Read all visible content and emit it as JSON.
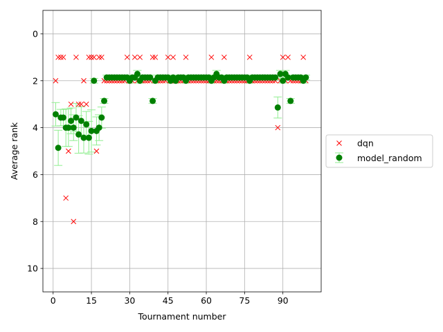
{
  "chart_data": {
    "type": "scatter",
    "xlabel": "Tournament number",
    "ylabel": "Average rank",
    "xlim": [
      -4,
      105
    ],
    "ylim": [
      11,
      -1
    ],
    "xticks": [
      0,
      15,
      30,
      45,
      60,
      75,
      90
    ],
    "yticks": [
      0,
      2,
      4,
      6,
      8,
      10
    ],
    "grid": true,
    "legend_position": "center-right",
    "colors": {
      "dqn": "#ff0000",
      "model_random": "#008000",
      "errorbar": "#90ee90"
    },
    "series": [
      {
        "name": "dqn",
        "marker": "x",
        "x": [
          1,
          2,
          3,
          4,
          5,
          6,
          7,
          8,
          9,
          10,
          11,
          12,
          13,
          14,
          15,
          16,
          17,
          18,
          19,
          20,
          21,
          22,
          23,
          24,
          25,
          26,
          27,
          28,
          29,
          30,
          31,
          32,
          33,
          34,
          35,
          36,
          37,
          38,
          39,
          40,
          41,
          42,
          43,
          44,
          45,
          46,
          47,
          48,
          49,
          50,
          51,
          52,
          53,
          54,
          55,
          56,
          57,
          58,
          59,
          60,
          61,
          62,
          63,
          64,
          65,
          66,
          67,
          68,
          69,
          70,
          71,
          72,
          73,
          74,
          75,
          76,
          77,
          78,
          79,
          80,
          81,
          82,
          83,
          84,
          85,
          86,
          87,
          88,
          89,
          90,
          91,
          92,
          93,
          94,
          95,
          96,
          97,
          98,
          99
        ],
        "y": [
          2,
          1,
          1,
          1,
          7,
          5,
          3,
          8,
          1,
          3,
          3,
          2,
          3,
          1,
          1,
          1,
          5,
          1,
          1,
          2,
          2,
          2,
          2,
          2,
          2,
          2,
          2,
          2,
          1,
          2,
          2,
          1,
          2,
          1,
          2,
          2,
          2,
          2,
          1,
          1,
          2,
          2,
          2,
          2,
          1,
          2,
          1,
          2,
          2,
          2,
          2,
          1,
          2,
          2,
          2,
          2,
          2,
          2,
          2,
          2,
          2,
          1,
          2,
          2,
          2,
          2,
          1,
          2,
          2,
          2,
          2,
          2,
          2,
          2,
          2,
          2,
          1,
          2,
          2,
          2,
          2,
          2,
          2,
          2,
          2,
          2,
          2,
          4,
          2,
          1,
          2,
          1,
          2,
          2,
          2,
          2,
          2,
          1,
          2
        ]
      },
      {
        "name": "model_random",
        "marker": "o",
        "x": [
          1,
          2,
          3,
          4,
          5,
          6,
          7,
          8,
          9,
          10,
          11,
          12,
          13,
          14,
          15,
          16,
          17,
          18,
          19,
          20,
          21,
          22,
          23,
          24,
          25,
          26,
          27,
          28,
          29,
          30,
          31,
          32,
          33,
          34,
          35,
          36,
          37,
          38,
          39,
          40,
          41,
          42,
          43,
          44,
          45,
          46,
          47,
          48,
          49,
          50,
          51,
          52,
          53,
          54,
          55,
          56,
          57,
          58,
          59,
          60,
          61,
          62,
          63,
          64,
          65,
          66,
          67,
          68,
          69,
          70,
          71,
          72,
          73,
          74,
          75,
          76,
          77,
          78,
          79,
          80,
          81,
          82,
          83,
          84,
          85,
          86,
          87,
          88,
          89,
          90,
          91,
          92,
          93,
          94,
          95,
          96,
          97,
          98,
          99
        ],
        "y": [
          3.43,
          4.86,
          3.57,
          3.57,
          4.0,
          4.0,
          3.71,
          4.0,
          3.57,
          4.29,
          3.71,
          4.43,
          3.86,
          4.43,
          4.14,
          2.0,
          4.14,
          4.0,
          3.57,
          2.86,
          1.86,
          1.86,
          1.86,
          1.86,
          1.86,
          1.86,
          1.86,
          1.86,
          1.86,
          2.0,
          1.86,
          1.86,
          1.71,
          2.0,
          1.86,
          1.86,
          1.86,
          1.86,
          2.86,
          2.0,
          1.86,
          1.86,
          1.86,
          1.86,
          1.86,
          2.0,
          1.86,
          2.0,
          1.86,
          1.86,
          1.86,
          2.0,
          1.86,
          1.86,
          1.86,
          1.86,
          1.86,
          1.86,
          1.86,
          1.86,
          1.86,
          2.0,
          1.86,
          1.71,
          1.86,
          1.86,
          2.0,
          1.86,
          1.86,
          1.86,
          1.86,
          1.86,
          1.86,
          1.86,
          1.86,
          1.86,
          2.0,
          1.86,
          1.86,
          1.86,
          1.86,
          1.86,
          1.86,
          1.86,
          1.86,
          1.86,
          1.86,
          3.14,
          1.71,
          2.0,
          1.71,
          1.86,
          2.86,
          1.86,
          1.86,
          1.86,
          1.86,
          2.0,
          1.86
        ],
        "err": [
          0.5,
          0.75,
          0.35,
          0.35,
          0.8,
          0.8,
          0.55,
          0.55,
          0.6,
          0.8,
          0.6,
          0.65,
          0.55,
          0.7,
          0.9,
          0.1,
          0.6,
          0.55,
          0.45,
          0.1,
          0.1,
          0.1,
          0.1,
          0.1,
          0.1,
          0.1,
          0.1,
          0.1,
          0.1,
          0.1,
          0.1,
          0.1,
          0.15,
          0.1,
          0.1,
          0.1,
          0.1,
          0.1,
          0.1,
          0.1,
          0.1,
          0.1,
          0.1,
          0.1,
          0.1,
          0.1,
          0.1,
          0.1,
          0.1,
          0.1,
          0.1,
          0.1,
          0.1,
          0.1,
          0.1,
          0.1,
          0.1,
          0.1,
          0.1,
          0.1,
          0.1,
          0.1,
          0.1,
          0.15,
          0.1,
          0.1,
          0.1,
          0.1,
          0.1,
          0.1,
          0.1,
          0.1,
          0.1,
          0.1,
          0.1,
          0.1,
          0.1,
          0.1,
          0.1,
          0.1,
          0.1,
          0.1,
          0.1,
          0.1,
          0.1,
          0.1,
          0.1,
          0.45,
          0.15,
          0.1,
          0.15,
          0.1,
          0.1,
          0.1,
          0.1,
          0.1,
          0.1,
          0.1,
          0.1
        ]
      }
    ]
  }
}
